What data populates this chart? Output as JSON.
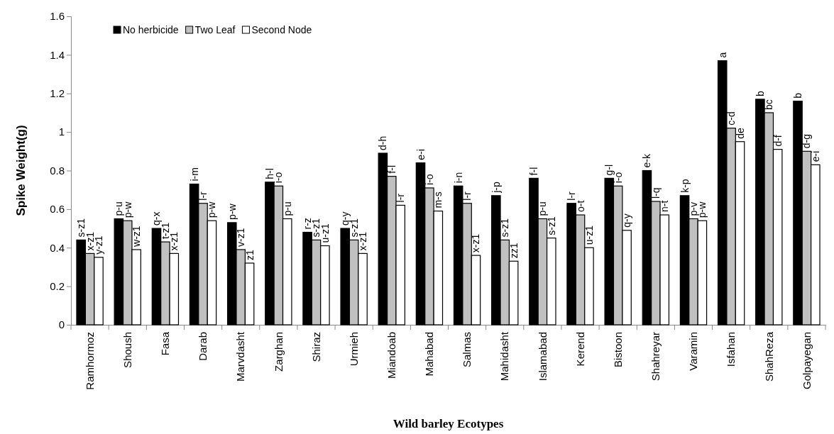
{
  "chart_data": {
    "type": "bar",
    "xlabel": "Wild barley Ecotypes",
    "ylabel": "Spike Weight(g)",
    "categories": [
      "Ramhormoz",
      "Shoush",
      "Fasa",
      "Darab",
      "Marvdasht",
      "Zarghan",
      "Shiraz",
      "Urmieh",
      "Miandoab",
      "Mahabad",
      "Salmas",
      "Mahidasht",
      "Islamabad",
      "Kerend",
      "Bistoon",
      "Shahreyar",
      "Varamin",
      "Isfahan",
      "ShahReza",
      "Golpayegan"
    ],
    "series": [
      {
        "name": "No herbicide",
        "color": "#000000",
        "values": [
          0.44,
          0.55,
          0.5,
          0.73,
          0.53,
          0.74,
          0.48,
          0.5,
          0.89,
          0.84,
          0.72,
          0.67,
          0.76,
          0.63,
          0.76,
          0.8,
          0.67,
          1.37,
          1.17,
          1.16
        ],
        "value_labels": [
          "s-z1",
          "p-u",
          "q-x",
          "i-m",
          "p-w",
          "h-l",
          "r-z",
          "q-y",
          "d-h",
          "e-i",
          "i-n",
          "j-p",
          "f-l",
          "l-r",
          "g-l",
          "e-k",
          "k-p",
          "a",
          "b",
          "b"
        ]
      },
      {
        "name": "Two Leaf",
        "color": "#c0c0c0",
        "values": [
          0.37,
          0.54,
          0.43,
          0.63,
          0.39,
          0.72,
          0.44,
          0.44,
          0.77,
          0.71,
          0.63,
          0.44,
          0.55,
          0.57,
          0.72,
          0.64,
          0.55,
          1.02,
          1.1,
          0.9
        ],
        "value_labels": [
          "x-z1",
          "p-w",
          "t-z1",
          "l-r",
          "v-z1",
          "i-o",
          "s-z1",
          "s-z1",
          "f-l",
          "i-o",
          "l-r",
          "s-z1",
          "p-u",
          "o-t",
          "i-o",
          "l-q",
          "p-v",
          "c-d",
          "bc",
          "d-g"
        ]
      },
      {
        "name": "Second Node",
        "color": "#ffffff",
        "values": [
          0.35,
          0.39,
          0.37,
          0.54,
          0.32,
          0.55,
          0.41,
          0.37,
          0.62,
          0.59,
          0.36,
          0.33,
          0.45,
          0.4,
          0.49,
          0.57,
          0.54,
          0.95,
          0.91,
          0.83
        ],
        "value_labels": [
          "y-z1",
          "w-z1",
          "x-z1",
          "p-w",
          "z1",
          "p-u",
          "u-z1",
          "x-z1",
          "l-r",
          "m-s",
          "x-z1",
          "zz1",
          "s-z1",
          "u-z1",
          "q-y",
          "n-t",
          "p-w",
          "de",
          "d-f",
          "e-i"
        ]
      }
    ],
    "ylim": [
      0,
      1.6
    ],
    "yticks": [
      0,
      0.2,
      0.4,
      0.6,
      0.8,
      1,
      1.2,
      1.4,
      1.6
    ],
    "grid": false,
    "legend": "top left"
  }
}
